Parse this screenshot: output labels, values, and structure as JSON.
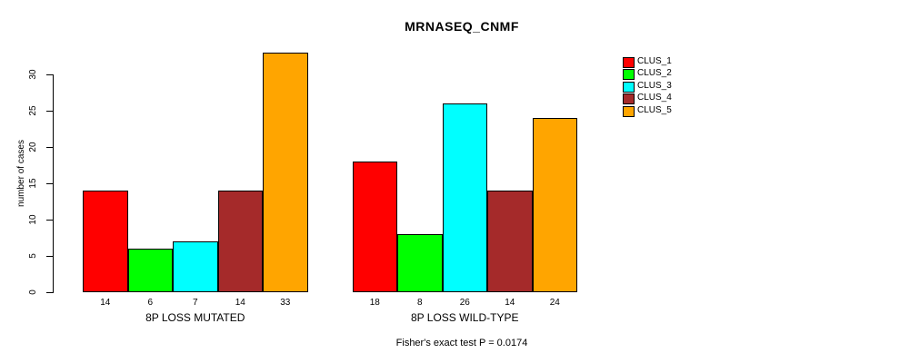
{
  "chart_data": {
    "type": "bar",
    "title": "MRNASEQ_CNMF",
    "ylabel": "number of cases",
    "xlabel": "",
    "yticks": [
      0,
      5,
      10,
      15,
      20,
      25,
      30
    ],
    "ylim": [
      0,
      33
    ],
    "grid": false,
    "legend_position": "right",
    "annotation": "Fisher's exact test P = 0.0174",
    "bar_value_labels": true,
    "categories": [
      "8P LOSS MUTATED",
      "8P LOSS WILD-TYPE"
    ],
    "series": [
      {
        "name": "CLUS_1",
        "color": "#FF0000",
        "values": [
          14,
          18
        ]
      },
      {
        "name": "CLUS_2",
        "color": "#00FF00",
        "values": [
          6,
          8
        ]
      },
      {
        "name": "CLUS_3",
        "color": "#00FFFF",
        "values": [
          7,
          26
        ]
      },
      {
        "name": "CLUS_4",
        "color": "#A52A2A",
        "values": [
          14,
          14
        ]
      },
      {
        "name": "CLUS_5",
        "color": "#FFA500",
        "values": [
          33,
          24
        ]
      }
    ]
  },
  "colors": {
    "background": "#FFFFFF",
    "axis": "#000000",
    "bar_border": "#000000"
  }
}
